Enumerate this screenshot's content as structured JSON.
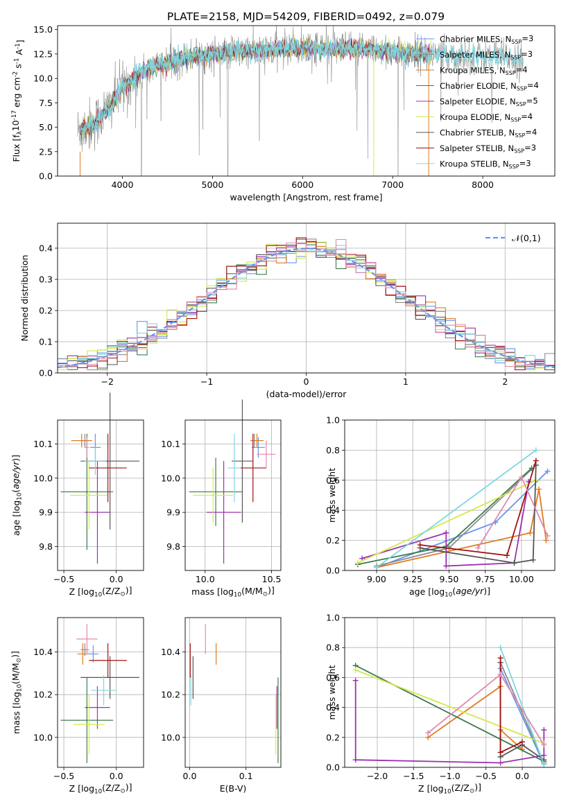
{
  "title": "PLATE=2158, MJD=54209, FIBERID=0492, z=0.079",
  "colors": {
    "Chabrier MILES": "#6495ed",
    "Salpeter MILES": "#8c8c8c",
    "Kroupa MILES": "#e07a1f",
    "Chabrier ELODIE": "#3d7a4e",
    "Salpeter ELODIE": "#9b30b0",
    "Kroupa ELODIE": "#d4e84a",
    "Chabrier STELIB": "#555555",
    "Salpeter STELIB": "#a01010",
    "Kroupa STELIB": "#7fd6e0",
    "Pink": "#e088b0",
    "DataGrey": "#808080"
  },
  "chart_data": [
    {
      "id": "spectrum",
      "type": "line",
      "xlabel": "wavelength [Angstrom, rest frame]",
      "ylabel": "Flux [f$_\\lambda$10$^{-17}$ erg cm$^{-2}$ s$^{-1}$ A$^{-1}$]",
      "xlim": [
        3280,
        8800
      ],
      "ylim": [
        0,
        15.4
      ],
      "xticks": [
        4000,
        5000,
        6000,
        7000,
        8000
      ],
      "yticks": [
        0.0,
        2.5,
        5.0,
        7.5,
        10.0,
        12.5,
        15.0
      ],
      "grid": false,
      "legend_position": "right",
      "series": [
        {
          "name": "Chabrier MILES, N$_{SSP}$=3"
        },
        {
          "name": "Salpeter MILES, N$_{SSP}$=3"
        },
        {
          "name": "Kroupa MILES, N$_{SSP}$=4"
        },
        {
          "name": "Chabrier ELODIE, N$_{SSP}$=4"
        },
        {
          "name": "Salpeter ELODIE, N$_{SSP}$=5"
        },
        {
          "name": "Kroupa ELODIE, N$_{SSP}$=4"
        },
        {
          "name": "Chabrier STELIB, N$_{SSP}$=4"
        },
        {
          "name": "Salpeter STELIB, N$_{SSP}$=3"
        },
        {
          "name": "Kroupa STELIB, N$_{SSP}$=3"
        }
      ],
      "continuum": {
        "x": [
          3500,
          3700,
          3850,
          4000,
          4200,
          4400,
          4600,
          4800,
          5000,
          5300,
          5600,
          5900,
          6200,
          6500,
          6800,
          7100,
          7400,
          7700,
          8000,
          8300,
          8450
        ],
        "y": [
          4.5,
          5.5,
          7.0,
          9.0,
          10.5,
          11.4,
          11.9,
          12.3,
          12.5,
          12.7,
          12.9,
          13.1,
          13.1,
          13.0,
          12.9,
          12.7,
          12.5,
          12.4,
          12.3,
          12.1,
          11.8
        ]
      }
    },
    {
      "id": "residuals",
      "type": "line",
      "xlabel": "(data-model)/error",
      "ylabel": "Normed distribution",
      "xlim": [
        -2.5,
        2.5
      ],
      "ylim": [
        0,
        0.48
      ],
      "xticks": [
        -2,
        -1,
        0,
        1,
        2
      ],
      "yticks": [
        0.0,
        0.1,
        0.2,
        0.3,
        0.4
      ],
      "grid": true,
      "legend_position": "top-right",
      "gaussian_label": "$\\mathcal{N}(0,1)$",
      "bin_width": 0.1
    },
    {
      "id": "age_vs_Z",
      "type": "scatter",
      "xlabel": "Z [log$_{10}$(Z/Z$_\\odot$)]",
      "ylabel": "age  [log$_{10}$($age/yr$)]",
      "xlim": [
        -0.56,
        0.26
      ],
      "ylim": [
        9.73,
        10.17
      ],
      "xticks": [
        -0.5,
        0.0
      ],
      "yticks": [
        9.8,
        9.9,
        10.0,
        10.1
      ],
      "grid": true,
      "points": [
        {
          "c": "Chabrier MILES",
          "x": -0.2,
          "y": 10.09,
          "xerr": 0.05,
          "yerr": 0.04
        },
        {
          "c": "Salpeter MILES",
          "x": -0.3,
          "y": 10.11,
          "xerr": 0.03,
          "yerr": 0.02
        },
        {
          "c": "Kroupa MILES",
          "x": -0.33,
          "y": 10.11,
          "xerr": 0.1,
          "yerr": 0.02
        },
        {
          "c": "Chabrier ELODIE",
          "x": -0.28,
          "y": 9.96,
          "xerr": 0.25,
          "yerr": 0.17
        },
        {
          "c": "Salpeter ELODIE",
          "x": -0.18,
          "y": 9.9,
          "xerr": 0.12,
          "yerr": 0.15
        },
        {
          "c": "Kroupa ELODIE",
          "x": -0.26,
          "y": 9.95,
          "xerr": 0.18,
          "yerr": 0.1
        },
        {
          "c": "Chabrier STELIB",
          "x": -0.06,
          "y": 10.05,
          "xerr": 0.28,
          "yerr": 0.2
        },
        {
          "c": "Salpeter STELIB",
          "x": -0.08,
          "y": 10.03,
          "xerr": 0.18,
          "yerr": 0.1
        },
        {
          "c": "Kroupa STELIB",
          "x": -0.2,
          "y": 10.05,
          "xerr": 0.1,
          "yerr": 0.04
        },
        {
          "c": "Pink",
          "x": -0.28,
          "y": 10.09,
          "xerr": 0.02,
          "yerr": 0.03
        }
      ]
    },
    {
      "id": "age_vs_mass",
      "type": "scatter",
      "xlabel": "mass [log$_{10}$(M/M$_\\odot$)]",
      "ylabel": "",
      "xlim": [
        9.85,
        10.57
      ],
      "ylim": [
        9.73,
        10.17
      ],
      "xticks": [
        10.0,
        10.5
      ],
      "yticks": [
        9.8,
        9.9,
        10.0,
        10.1
      ],
      "grid": true,
      "points": [
        {
          "c": "Chabrier MILES",
          "x": 10.4,
          "y": 10.09,
          "xerr": 0.05,
          "yerr": 0.03
        },
        {
          "c": "Salpeter MILES",
          "x": 10.37,
          "y": 10.11,
          "xerr": 0.03,
          "yerr": 0.02
        },
        {
          "c": "Kroupa MILES",
          "x": 10.39,
          "y": 10.11,
          "xerr": 0.05,
          "yerr": 0.02
        },
        {
          "c": "Chabrier ELODIE",
          "x": 10.08,
          "y": 9.96,
          "xerr": 0.2,
          "yerr": 0.1
        },
        {
          "c": "Salpeter ELODIE",
          "x": 10.14,
          "y": 9.9,
          "xerr": 0.13,
          "yerr": 0.15
        },
        {
          "c": "Kroupa ELODIE",
          "x": 10.06,
          "y": 9.95,
          "xerr": 0.15,
          "yerr": 0.08
        },
        {
          "c": "Chabrier STELIB",
          "x": 10.28,
          "y": 10.05,
          "xerr": 0.08,
          "yerr": 0.18
        },
        {
          "c": "Salpeter STELIB",
          "x": 10.36,
          "y": 10.03,
          "xerr": 0.1,
          "yerr": 0.1
        },
        {
          "c": "Kroupa STELIB",
          "x": 10.22,
          "y": 10.03,
          "xerr": 0.05,
          "yerr": 0.1
        },
        {
          "c": "Pink",
          "x": 10.46,
          "y": 10.07,
          "xerr": 0.07,
          "yerr": 0.04
        }
      ]
    },
    {
      "id": "weight_vs_age",
      "type": "line",
      "xlabel": "age  [log$_{10}$($age/yr$)]",
      "ylabel": "mass weight",
      "xlim": [
        8.78,
        10.23
      ],
      "ylim": [
        0,
        1.0
      ],
      "xticks": [
        9.0,
        9.25,
        9.5,
        9.75,
        10.0
      ],
      "yticks": [
        0.0,
        0.2,
        0.4,
        0.6,
        0.8,
        1.0
      ],
      "grid": true,
      "series": [
        {
          "c": "Chabrier MILES",
          "x": [
            9.0,
            9.82,
            10.18
          ],
          "y": [
            0.02,
            0.32,
            0.66
          ]
        },
        {
          "c": "Salpeter MILES",
          "x": [
            9.0,
            9.5,
            10.1
          ],
          "y": [
            0.03,
            0.15,
            0.7
          ]
        },
        {
          "c": "Kroupa MILES",
          "x": [
            9.0,
            10.06,
            10.12,
            10.17
          ],
          "y": [
            0.02,
            0.25,
            0.54,
            0.2
          ]
        },
        {
          "c": "Chabrier ELODIE",
          "x": [
            8.87,
            9.48,
            10.07
          ],
          "y": [
            0.04,
            0.16,
            0.68
          ]
        },
        {
          "c": "Salpeter ELODIE",
          "x": [
            8.9,
            9.48,
            9.48,
            9.95,
            10.05
          ],
          "y": [
            0.08,
            0.25,
            0.03,
            0.05,
            0.59
          ]
        },
        {
          "c": "Kroupa ELODIE",
          "x": [
            8.87,
            10.1
          ],
          "y": [
            0.05,
            0.6
          ]
        },
        {
          "c": "Chabrier STELIB",
          "x": [
            9.3,
            9.95,
            10.08,
            10.1
          ],
          "y": [
            0.15,
            0.05,
            0.07,
            0.7
          ]
        },
        {
          "c": "Salpeter STELIB",
          "x": [
            9.3,
            9.9,
            10.1
          ],
          "y": [
            0.17,
            0.1,
            0.73
          ]
        },
        {
          "c": "Kroupa STELIB",
          "x": [
            9.0,
            10.1
          ],
          "y": [
            0.02,
            0.8
          ]
        },
        {
          "c": "Pink",
          "x": [
            9.7,
            10.0,
            10.18
          ],
          "y": [
            0.15,
            0.62,
            0.23
          ]
        }
      ]
    },
    {
      "id": "mass_vs_Z",
      "type": "scatter",
      "xlabel": "Z [log$_{10}$(Z/Z$_\\odot$)]",
      "ylabel": "mass [log$_{10}$(M/M$_\\odot$)]",
      "xlim": [
        -0.56,
        0.26
      ],
      "ylim": [
        9.86,
        10.56
      ],
      "xticks": [
        -0.5,
        0.0
      ],
      "yticks": [
        10.0,
        10.2,
        10.4
      ],
      "grid": true,
      "points": [
        {
          "c": "Chabrier MILES",
          "x": -0.22,
          "y": 10.39,
          "xerr": 0.05,
          "yerr": 0.04
        },
        {
          "c": "Salpeter MILES",
          "x": -0.3,
          "y": 10.41,
          "xerr": 0.04,
          "yerr": 0.03
        },
        {
          "c": "Kroupa MILES",
          "x": -0.32,
          "y": 10.39,
          "xerr": 0.05,
          "yerr": 0.05
        },
        {
          "c": "Chabrier ELODIE",
          "x": -0.28,
          "y": 10.08,
          "xerr": 0.25,
          "yerr": 0.2
        },
        {
          "c": "Salpeter ELODIE",
          "x": -0.18,
          "y": 10.14,
          "xerr": 0.12,
          "yerr": 0.1
        },
        {
          "c": "Kroupa ELODIE",
          "x": -0.26,
          "y": 10.06,
          "xerr": 0.15,
          "yerr": 0.14
        },
        {
          "c": "Chabrier STELIB",
          "x": -0.06,
          "y": 10.28,
          "xerr": 0.28,
          "yerr": 0.1
        },
        {
          "c": "Salpeter STELIB",
          "x": -0.08,
          "y": 10.36,
          "xerr": 0.18,
          "yerr": 0.08
        },
        {
          "c": "Kroupa STELIB",
          "x": -0.12,
          "y": 10.22,
          "xerr": 0.12,
          "yerr": 0.07
        },
        {
          "c": "Pink",
          "x": -0.28,
          "y": 10.46,
          "xerr": 0.1,
          "yerr": 0.07
        }
      ]
    },
    {
      "id": "mass_vs_EBV",
      "type": "scatter",
      "xlabel": "E(B-V)",
      "ylabel": "",
      "xlim": [
        -0.008,
        0.162
      ],
      "ylim": [
        9.86,
        10.56
      ],
      "xticks": [
        0.0,
        0.1
      ],
      "yticks": [
        10.0,
        10.2,
        10.4
      ],
      "grid": true,
      "points": [
        {
          "c": "Kroupa STELIB",
          "x": 0.002,
          "y": 10.22,
          "yerr": 0.07
        },
        {
          "c": "Salpeter STELIB",
          "x": 0.001,
          "y": 10.36,
          "yerr": 0.08
        },
        {
          "c": "Chabrier STELIB",
          "x": 0.006,
          "y": 10.28,
          "yerr": 0.1
        },
        {
          "c": "Pink",
          "x": 0.028,
          "y": 10.46,
          "yerr": 0.07
        },
        {
          "c": "Kroupa MILES",
          "x": 0.047,
          "y": 10.39,
          "yerr": 0.05
        },
        {
          "c": "Salpeter ELODIE",
          "x": 0.155,
          "y": 10.14,
          "yerr": 0.1
        },
        {
          "c": "Chabrier ELODIE",
          "x": 0.157,
          "y": 10.08,
          "yerr": 0.2
        },
        {
          "c": "Kroupa ELODIE",
          "x": 0.153,
          "y": 10.06,
          "yerr": 0.14
        }
      ]
    },
    {
      "id": "weight_vs_Z",
      "type": "line",
      "xlabel": "Z [log$_{10}$(Z/Z$_\\odot$)]",
      "ylabel": "mass weight",
      "xlim": [
        -2.45,
        0.45
      ],
      "ylim": [
        0,
        1.0
      ],
      "xticks": [
        -2.0,
        -1.5,
        -1.0,
        -0.5,
        0.0
      ],
      "yticks": [
        0.0,
        0.2,
        0.4,
        0.6,
        0.8,
        1.0
      ],
      "grid": true,
      "series": [
        {
          "c": "Chabrier MILES",
          "x": [
            -0.3,
            0.3
          ],
          "y": [
            0.66,
            0.02
          ]
        },
        {
          "c": "Salpeter MILES",
          "x": [
            -0.3,
            0.3
          ],
          "y": [
            0.7,
            0.03
          ]
        },
        {
          "c": "Kroupa MILES",
          "x": [
            -1.3,
            -0.3,
            -0.3,
            0.0
          ],
          "y": [
            0.2,
            0.54,
            0.25,
            0.12
          ]
        },
        {
          "c": "Chabrier ELODIE",
          "x": [
            -2.3,
            0.3
          ],
          "y": [
            0.68,
            0.04
          ]
        },
        {
          "c": "Salpeter ELODIE",
          "x": [
            -2.3,
            -2.3,
            -0.3,
            0.3,
            0.3
          ],
          "y": [
            0.58,
            0.05,
            0.03,
            0.08,
            0.25
          ]
        },
        {
          "c": "Kroupa ELODIE",
          "x": [
            -2.3,
            0.3
          ],
          "y": [
            0.65,
            0.16
          ]
        },
        {
          "c": "Chabrier STELIB",
          "x": [
            -0.3,
            -0.3,
            0.0,
            0.3
          ],
          "y": [
            0.7,
            0.07,
            0.15,
            0.05
          ]
        },
        {
          "c": "Salpeter STELIB",
          "x": [
            -0.3,
            -0.3,
            0.0
          ],
          "y": [
            0.73,
            0.1,
            0.17
          ]
        },
        {
          "c": "Kroupa STELIB",
          "x": [
            -0.3,
            0.3
          ],
          "y": [
            0.8,
            0.02
          ]
        },
        {
          "c": "Pink",
          "x": [
            -1.3,
            -0.3,
            0.3
          ],
          "y": [
            0.23,
            0.62,
            0.15
          ]
        }
      ]
    }
  ]
}
